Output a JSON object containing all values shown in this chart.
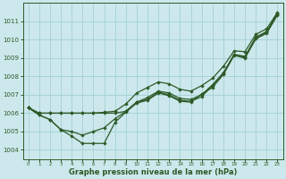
{
  "xlabel": "Graphe pression niveau de la mer (hPa)",
  "background_color": "#cce8ec",
  "grid_color": "#a8d4d8",
  "line_color": "#2d5a27",
  "x_ticks": [
    0,
    1,
    2,
    3,
    4,
    5,
    6,
    7,
    8,
    9,
    10,
    11,
    12,
    13,
    14,
    15,
    16,
    17,
    18,
    19,
    20,
    21,
    22,
    23
  ],
  "ylim": [
    1003.5,
    1012.0
  ],
  "yticks": [
    1004,
    1005,
    1006,
    1007,
    1008,
    1009,
    1010,
    1011
  ],
  "smooth_line": [
    1006.3,
    1005.9,
    1005.65,
    1005.1,
    1005.0,
    1004.8,
    1005.0,
    1005.2,
    1005.7,
    1006.1,
    1006.6,
    1006.75,
    1007.15,
    1007.0,
    1006.7,
    1006.65,
    1006.9,
    1007.5,
    1008.15,
    1009.2,
    1009.05,
    1010.1,
    1010.4,
    1011.4
  ],
  "jagged_line": [
    1006.3,
    1005.9,
    1005.65,
    1005.1,
    1004.75,
    1004.35,
    1004.35,
    1004.35,
    1005.5,
    1006.05,
    1006.55,
    1006.7,
    1007.1,
    1006.95,
    1006.65,
    1006.6,
    1007.05,
    1007.4,
    1008.1,
    1009.15,
    1009.0,
    1010.05,
    1010.35,
    1011.35
  ],
  "upper_line": [
    1006.3,
    1006.0,
    1006.0,
    1006.0,
    1006.0,
    1006.0,
    1006.0,
    1006.0,
    1006.0,
    1006.1,
    1006.6,
    1006.85,
    1007.2,
    1007.1,
    1006.8,
    1006.75,
    1007.0,
    1007.55,
    1008.2,
    1009.2,
    1009.1,
    1010.15,
    1010.45,
    1011.45
  ],
  "top_line": [
    1006.3,
    1006.0,
    1006.0,
    1006.0,
    1006.0,
    1006.0,
    1006.0,
    1006.05,
    1006.1,
    1006.5,
    1007.1,
    1007.4,
    1007.7,
    1007.6,
    1007.3,
    1007.2,
    1007.5,
    1007.9,
    1008.55,
    1009.4,
    1009.35,
    1010.3,
    1010.6,
    1011.5
  ]
}
